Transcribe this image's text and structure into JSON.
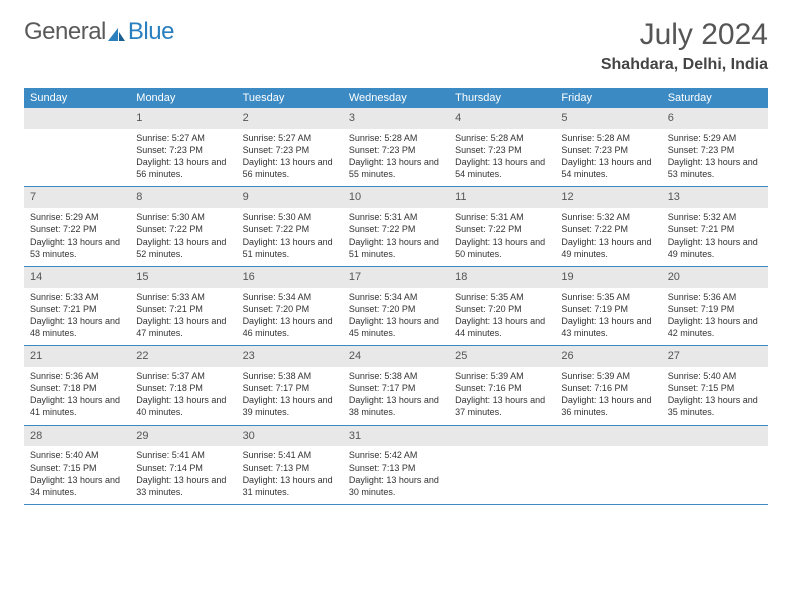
{
  "brand": {
    "part1": "General",
    "part2": "Blue"
  },
  "title": "July 2024",
  "location": "Shahdara, Delhi, India",
  "colors": {
    "headerBg": "#3b8ac4",
    "headerText": "#ffffff",
    "dayNumBg": "#e8e8e8",
    "dayNumText": "#555555",
    "cellBorder": "#3b8ac4",
    "bodyText": "#333333",
    "pageBg": "#ffffff",
    "logoGray": "#5a5a5a",
    "logoBlue": "#2a7fbf"
  },
  "typography": {
    "titleSize": 30,
    "locationSize": 16,
    "dayHeaderSize": 11,
    "dayNumSize": 11,
    "cellBodySize": 9
  },
  "weekdays": [
    "Sunday",
    "Monday",
    "Tuesday",
    "Wednesday",
    "Thursday",
    "Friday",
    "Saturday"
  ],
  "days": [
    {
      "n": 1,
      "sunrise": "5:27 AM",
      "sunset": "7:23 PM",
      "daylight": "13 hours and 56 minutes."
    },
    {
      "n": 2,
      "sunrise": "5:27 AM",
      "sunset": "7:23 PM",
      "daylight": "13 hours and 56 minutes."
    },
    {
      "n": 3,
      "sunrise": "5:28 AM",
      "sunset": "7:23 PM",
      "daylight": "13 hours and 55 minutes."
    },
    {
      "n": 4,
      "sunrise": "5:28 AM",
      "sunset": "7:23 PM",
      "daylight": "13 hours and 54 minutes."
    },
    {
      "n": 5,
      "sunrise": "5:28 AM",
      "sunset": "7:23 PM",
      "daylight": "13 hours and 54 minutes."
    },
    {
      "n": 6,
      "sunrise": "5:29 AM",
      "sunset": "7:23 PM",
      "daylight": "13 hours and 53 minutes."
    },
    {
      "n": 7,
      "sunrise": "5:29 AM",
      "sunset": "7:22 PM",
      "daylight": "13 hours and 53 minutes."
    },
    {
      "n": 8,
      "sunrise": "5:30 AM",
      "sunset": "7:22 PM",
      "daylight": "13 hours and 52 minutes."
    },
    {
      "n": 9,
      "sunrise": "5:30 AM",
      "sunset": "7:22 PM",
      "daylight": "13 hours and 51 minutes."
    },
    {
      "n": 10,
      "sunrise": "5:31 AM",
      "sunset": "7:22 PM",
      "daylight": "13 hours and 51 minutes."
    },
    {
      "n": 11,
      "sunrise": "5:31 AM",
      "sunset": "7:22 PM",
      "daylight": "13 hours and 50 minutes."
    },
    {
      "n": 12,
      "sunrise": "5:32 AM",
      "sunset": "7:22 PM",
      "daylight": "13 hours and 49 minutes."
    },
    {
      "n": 13,
      "sunrise": "5:32 AM",
      "sunset": "7:21 PM",
      "daylight": "13 hours and 49 minutes."
    },
    {
      "n": 14,
      "sunrise": "5:33 AM",
      "sunset": "7:21 PM",
      "daylight": "13 hours and 48 minutes."
    },
    {
      "n": 15,
      "sunrise": "5:33 AM",
      "sunset": "7:21 PM",
      "daylight": "13 hours and 47 minutes."
    },
    {
      "n": 16,
      "sunrise": "5:34 AM",
      "sunset": "7:20 PM",
      "daylight": "13 hours and 46 minutes."
    },
    {
      "n": 17,
      "sunrise": "5:34 AM",
      "sunset": "7:20 PM",
      "daylight": "13 hours and 45 minutes."
    },
    {
      "n": 18,
      "sunrise": "5:35 AM",
      "sunset": "7:20 PM",
      "daylight": "13 hours and 44 minutes."
    },
    {
      "n": 19,
      "sunrise": "5:35 AM",
      "sunset": "7:19 PM",
      "daylight": "13 hours and 43 minutes."
    },
    {
      "n": 20,
      "sunrise": "5:36 AM",
      "sunset": "7:19 PM",
      "daylight": "13 hours and 42 minutes."
    },
    {
      "n": 21,
      "sunrise": "5:36 AM",
      "sunset": "7:18 PM",
      "daylight": "13 hours and 41 minutes."
    },
    {
      "n": 22,
      "sunrise": "5:37 AM",
      "sunset": "7:18 PM",
      "daylight": "13 hours and 40 minutes."
    },
    {
      "n": 23,
      "sunrise": "5:38 AM",
      "sunset": "7:17 PM",
      "daylight": "13 hours and 39 minutes."
    },
    {
      "n": 24,
      "sunrise": "5:38 AM",
      "sunset": "7:17 PM",
      "daylight": "13 hours and 38 minutes."
    },
    {
      "n": 25,
      "sunrise": "5:39 AM",
      "sunset": "7:16 PM",
      "daylight": "13 hours and 37 minutes."
    },
    {
      "n": 26,
      "sunrise": "5:39 AM",
      "sunset": "7:16 PM",
      "daylight": "13 hours and 36 minutes."
    },
    {
      "n": 27,
      "sunrise": "5:40 AM",
      "sunset": "7:15 PM",
      "daylight": "13 hours and 35 minutes."
    },
    {
      "n": 28,
      "sunrise": "5:40 AM",
      "sunset": "7:15 PM",
      "daylight": "13 hours and 34 minutes."
    },
    {
      "n": 29,
      "sunrise": "5:41 AM",
      "sunset": "7:14 PM",
      "daylight": "13 hours and 33 minutes."
    },
    {
      "n": 30,
      "sunrise": "5:41 AM",
      "sunset": "7:13 PM",
      "daylight": "13 hours and 31 minutes."
    },
    {
      "n": 31,
      "sunrise": "5:42 AM",
      "sunset": "7:13 PM",
      "daylight": "13 hours and 30 minutes."
    }
  ],
  "startWeekday": 1,
  "labels": {
    "sunrise": "Sunrise:",
    "sunset": "Sunset:",
    "daylight": "Daylight:"
  }
}
